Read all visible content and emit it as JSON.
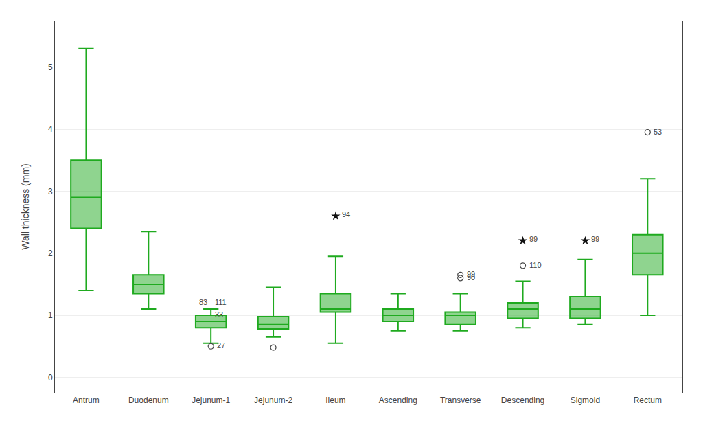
{
  "chart_data": {
    "type": "box",
    "categories": [
      "Antrum",
      "Duodenum",
      "Jejunum-1",
      "Jejunum-2",
      "Ileum",
      "Ascending",
      "Transverse",
      "Descending",
      "Sigmoid",
      "Rectum"
    ],
    "ylabel": "Wall thickness (mm)",
    "color": "#1faa1f",
    "ylim": [
      -0.25,
      5.75
    ],
    "yticks": [
      0,
      1,
      2,
      3,
      4,
      5
    ],
    "grid": true,
    "boxes": [
      {
        "whislo": 1.4,
        "q1": 2.4,
        "med": 2.9,
        "q3": 3.5,
        "whishi": 5.3
      },
      {
        "whislo": 1.1,
        "q1": 1.35,
        "med": 1.5,
        "q3": 1.65,
        "whishi": 2.35
      },
      {
        "whislo": 0.55,
        "q1": 0.8,
        "med": 0.9,
        "q3": 1.0,
        "whishi": 1.1,
        "fliers": [
          0.5
        ],
        "flier_labels": [
          "27"
        ]
      },
      {
        "whislo": 0.65,
        "q1": 0.78,
        "med": 0.85,
        "q3": 0.98,
        "whishi": 1.45,
        "fliers": [
          0.48
        ]
      },
      {
        "whislo": 0.55,
        "q1": 1.05,
        "med": 1.1,
        "q3": 1.35,
        "whishi": 1.95,
        "stars": [
          2.6
        ],
        "star_labels": [
          "94"
        ]
      },
      {
        "whislo": 0.75,
        "q1": 0.9,
        "med": 1.0,
        "q3": 1.1,
        "whishi": 1.35
      },
      {
        "whislo": 0.75,
        "q1": 0.85,
        "med": 1.0,
        "q3": 1.05,
        "whishi": 1.35,
        "fliers": [
          1.6,
          1.65
        ],
        "flier_labels": [
          "90",
          "99"
        ]
      },
      {
        "whislo": 0.8,
        "q1": 0.95,
        "med": 1.1,
        "q3": 1.2,
        "whishi": 1.55,
        "fliers": [
          1.8
        ],
        "flier_labels": [
          "110"
        ],
        "stars": [
          2.2
        ],
        "star_labels": [
          "99"
        ]
      },
      {
        "whislo": 0.85,
        "q1": 0.95,
        "med": 1.1,
        "q3": 1.3,
        "whishi": 1.9,
        "stars": [
          2.2
        ],
        "star_labels": [
          "99"
        ]
      },
      {
        "whislo": 1.0,
        "q1": 1.65,
        "med": 2.0,
        "q3": 2.3,
        "whishi": 3.2,
        "fliers": [
          3.95
        ],
        "flier_labels": [
          "53"
        ]
      }
    ],
    "annotations": [
      {
        "category": "Jejunum-1",
        "y": 1.1,
        "text": "83"
      },
      {
        "category": "Jejunum-1",
        "y": 1.1,
        "text": "111"
      },
      {
        "category": "Jejunum-1",
        "y": 0.9,
        "text": "33"
      }
    ]
  }
}
